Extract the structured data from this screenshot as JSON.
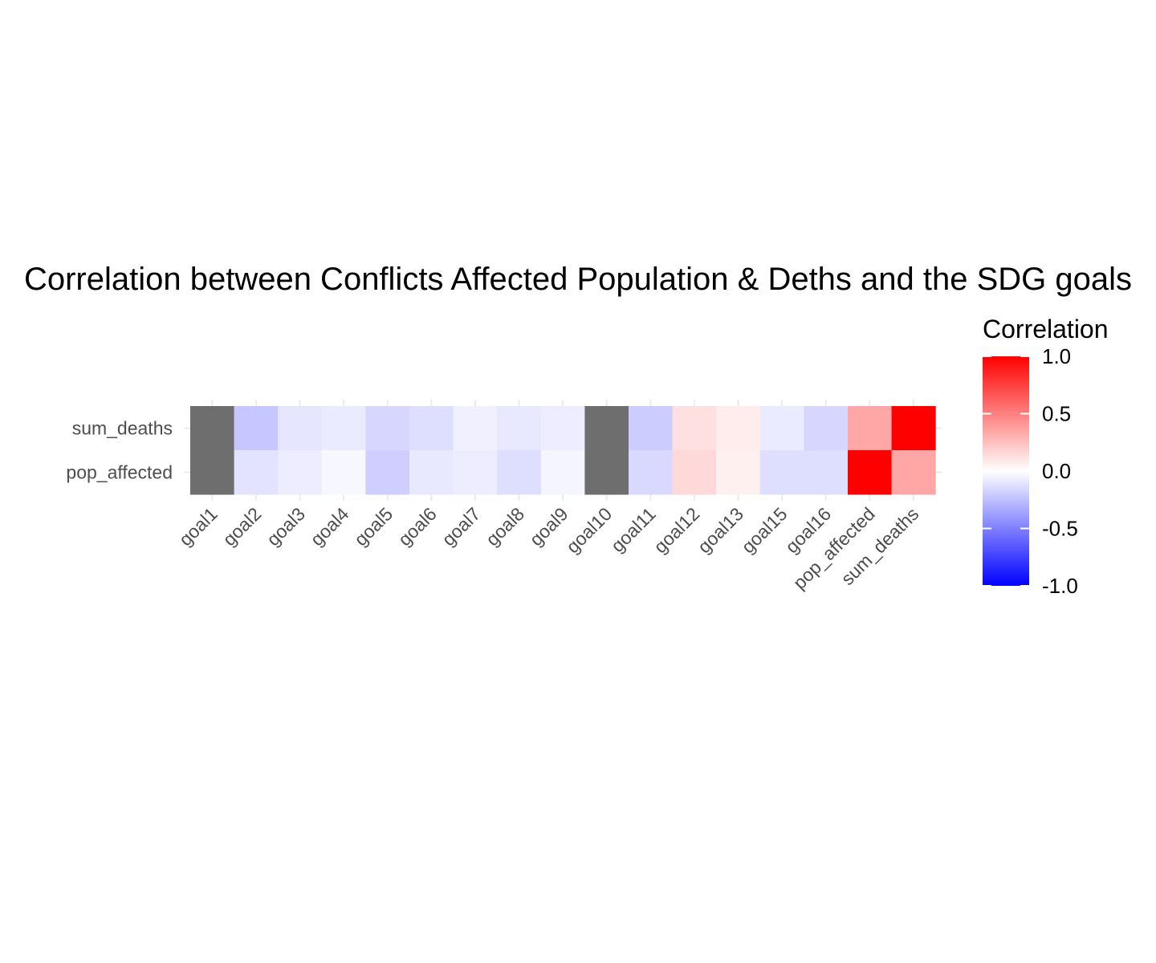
{
  "chart_data": {
    "type": "heatmap",
    "title": "Correlation between Conflicts Affected Population & Deths and the SDG goals",
    "xlabel": "",
    "ylabel": "",
    "x_categories": [
      "goal1",
      "goal2",
      "goal3",
      "goal4",
      "goal5",
      "goal6",
      "goal7",
      "goal8",
      "goal9",
      "goal10",
      "goal11",
      "goal12",
      "goal13",
      "goal15",
      "goal16",
      "pop_affected",
      "sum_deaths"
    ],
    "y_categories": [
      "sum_deaths",
      "pop_affected"
    ],
    "values": [
      [
        null,
        -0.22,
        -0.1,
        -0.08,
        -0.16,
        -0.13,
        -0.06,
        -0.09,
        -0.07,
        null,
        -0.2,
        0.12,
        0.07,
        -0.08,
        -0.16,
        0.35,
        1.0
      ],
      [
        null,
        -0.11,
        -0.07,
        -0.03,
        -0.19,
        -0.09,
        -0.07,
        -0.13,
        -0.04,
        null,
        -0.15,
        0.15,
        0.06,
        -0.13,
        -0.13,
        1.0,
        0.35
      ]
    ],
    "missing_color": "#6e6e6e",
    "legend": {
      "title": "Correlation",
      "placement": "right",
      "ticks": [
        "1.0",
        "0.5",
        "0.0",
        "-0.5",
        "-1.0"
      ],
      "tick_values": [
        1.0,
        0.5,
        0.0,
        -0.5,
        -1.0
      ],
      "low_color": "#0000ff",
      "mid_color": "#ffffff",
      "high_color": "#ff0000",
      "range": [
        -1.0,
        1.0
      ]
    },
    "grid": true
  }
}
